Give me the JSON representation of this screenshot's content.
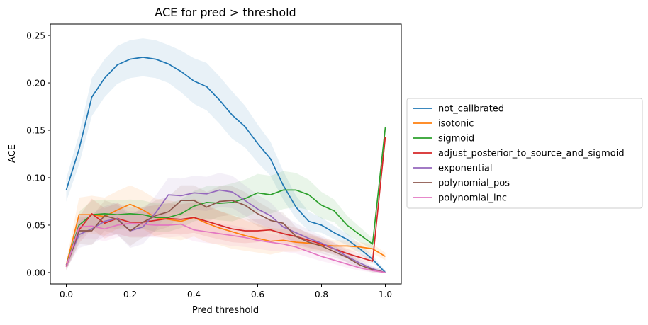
{
  "chart_data": {
    "type": "line",
    "title": "ACE for pred > threshold",
    "xlabel": "Pred threshold",
    "ylabel": "ACE",
    "xlim": [
      -0.05,
      1.05
    ],
    "ylim": [
      -0.012,
      0.262
    ],
    "xticks": [
      0.0,
      0.2,
      0.4,
      0.6,
      0.8,
      1.0
    ],
    "xtick_labels": [
      "0.0",
      "0.2",
      "0.4",
      "0.6",
      "0.8",
      "1.0"
    ],
    "yticks": [
      0.0,
      0.05,
      0.1,
      0.15,
      0.2,
      0.25
    ],
    "ytick_labels": [
      "0.00",
      "0.05",
      "0.10",
      "0.15",
      "0.20",
      "0.25"
    ],
    "grid": false,
    "legend_position": "center-right-outside",
    "x": [
      0.0,
      0.04,
      0.08,
      0.12,
      0.16,
      0.2,
      0.24,
      0.28,
      0.32,
      0.36,
      0.4,
      0.44,
      0.48,
      0.52,
      0.56,
      0.6,
      0.64,
      0.68,
      0.72,
      0.76,
      0.8,
      0.84,
      0.88,
      0.92,
      0.96,
      1.0
    ],
    "series": [
      {
        "name": "not_calibrated",
        "color": "#1f77b4",
        "values": [
          0.087,
          0.13,
          0.185,
          0.205,
          0.219,
          0.225,
          0.227,
          0.225,
          0.22,
          0.212,
          0.202,
          0.196,
          0.182,
          0.166,
          0.154,
          0.136,
          0.12,
          0.092,
          0.069,
          0.054,
          0.05,
          0.042,
          0.035,
          0.025,
          0.014,
          0.0
        ],
        "band": [
          0.012,
          0.016,
          0.02,
          0.02,
          0.02,
          0.02,
          0.02,
          0.02,
          0.02,
          0.022,
          0.024,
          0.025,
          0.025,
          0.025,
          0.022,
          0.02,
          0.018,
          0.015,
          0.012,
          0.01,
          0.008,
          0.007,
          0.006,
          0.005,
          0.004,
          0.002
        ]
      },
      {
        "name": "isotonic",
        "color": "#ff7f0e",
        "values": [
          0.008,
          0.061,
          0.061,
          0.059,
          0.066,
          0.072,
          0.066,
          0.058,
          0.056,
          0.054,
          0.058,
          0.052,
          0.047,
          0.043,
          0.039,
          0.036,
          0.033,
          0.034,
          0.032,
          0.031,
          0.029,
          0.028,
          0.028,
          0.027,
          0.025,
          0.017
        ],
        "band": [
          0.004,
          0.018,
          0.02,
          0.02,
          0.02,
          0.02,
          0.02,
          0.02,
          0.02,
          0.02,
          0.02,
          0.02,
          0.018,
          0.018,
          0.016,
          0.015,
          0.014,
          0.012,
          0.01,
          0.008,
          0.007,
          0.006,
          0.006,
          0.005,
          0.005,
          0.004
        ]
      },
      {
        "name": "sigmoid",
        "color": "#2ca02c",
        "values": [
          0.007,
          0.05,
          0.061,
          0.062,
          0.061,
          0.062,
          0.061,
          0.058,
          0.058,
          0.062,
          0.07,
          0.074,
          0.073,
          0.074,
          0.078,
          0.084,
          0.082,
          0.087,
          0.087,
          0.082,
          0.071,
          0.065,
          0.05,
          0.04,
          0.03,
          0.153
        ],
        "band": [
          0.004,
          0.014,
          0.015,
          0.015,
          0.015,
          0.015,
          0.015,
          0.015,
          0.015,
          0.015,
          0.016,
          0.017,
          0.018,
          0.02,
          0.02,
          0.02,
          0.02,
          0.02,
          0.018,
          0.016,
          0.014,
          0.012,
          0.01,
          0.008,
          0.006,
          0.003
        ]
      },
      {
        "name": "adjust_posterior_to_source_and_sigmoid",
        "color": "#d62728",
        "values": [
          0.007,
          0.045,
          0.062,
          0.052,
          0.057,
          0.053,
          0.053,
          0.055,
          0.057,
          0.056,
          0.058,
          0.054,
          0.05,
          0.046,
          0.044,
          0.044,
          0.045,
          0.041,
          0.038,
          0.034,
          0.03,
          0.025,
          0.02,
          0.016,
          0.012,
          0.143
        ],
        "band": [
          0.004,
          0.014,
          0.016,
          0.016,
          0.016,
          0.016,
          0.016,
          0.016,
          0.016,
          0.016,
          0.016,
          0.016,
          0.015,
          0.014,
          0.013,
          0.012,
          0.011,
          0.01,
          0.009,
          0.008,
          0.007,
          0.006,
          0.005,
          0.004,
          0.003,
          0.003
        ]
      },
      {
        "name": "exponential",
        "color": "#9467bd",
        "values": [
          0.008,
          0.04,
          0.046,
          0.054,
          0.057,
          0.044,
          0.048,
          0.063,
          0.082,
          0.081,
          0.084,
          0.083,
          0.087,
          0.085,
          0.076,
          0.067,
          0.06,
          0.048,
          0.042,
          0.036,
          0.031,
          0.025,
          0.017,
          0.01,
          0.004,
          0.0
        ],
        "band": [
          0.004,
          0.014,
          0.016,
          0.016,
          0.017,
          0.018,
          0.018,
          0.018,
          0.018,
          0.018,
          0.018,
          0.018,
          0.018,
          0.017,
          0.016,
          0.015,
          0.014,
          0.012,
          0.01,
          0.009,
          0.008,
          0.007,
          0.006,
          0.004,
          0.003,
          0.002
        ]
      },
      {
        "name": "polynomial_pos",
        "color": "#8c564b",
        "values": [
          0.006,
          0.044,
          0.044,
          0.06,
          0.056,
          0.044,
          0.053,
          0.06,
          0.064,
          0.076,
          0.076,
          0.069,
          0.075,
          0.076,
          0.071,
          0.062,
          0.055,
          0.052,
          0.038,
          0.032,
          0.028,
          0.022,
          0.016,
          0.008,
          0.003,
          0.0
        ],
        "band": [
          0.004,
          0.014,
          0.015,
          0.016,
          0.016,
          0.016,
          0.016,
          0.016,
          0.016,
          0.016,
          0.016,
          0.016,
          0.016,
          0.015,
          0.014,
          0.013,
          0.012,
          0.011,
          0.01,
          0.009,
          0.008,
          0.006,
          0.005,
          0.004,
          0.003,
          0.002
        ]
      },
      {
        "name": "polynomial_inc",
        "color": "#e377c2",
        "values": [
          0.006,
          0.048,
          0.049,
          0.046,
          0.05,
          0.052,
          0.051,
          0.05,
          0.05,
          0.051,
          0.045,
          0.043,
          0.041,
          0.039,
          0.037,
          0.034,
          0.032,
          0.03,
          0.027,
          0.022,
          0.017,
          0.013,
          0.009,
          0.005,
          0.002,
          0.0
        ],
        "band": [
          0.004,
          0.012,
          0.013,
          0.013,
          0.013,
          0.013,
          0.013,
          0.013,
          0.013,
          0.013,
          0.012,
          0.012,
          0.011,
          0.011,
          0.01,
          0.009,
          0.009,
          0.008,
          0.007,
          0.006,
          0.005,
          0.004,
          0.004,
          0.003,
          0.002,
          0.001
        ]
      }
    ]
  }
}
